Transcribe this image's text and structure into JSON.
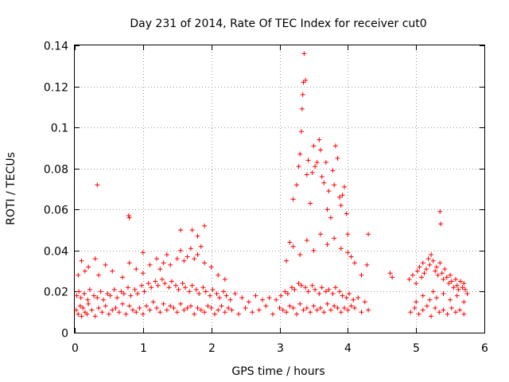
{
  "chart_data": {
    "type": "scatter",
    "title": "Day 231 of 2014, Rate Of TEC Index for receiver cut0",
    "xlabel": "GPS time / hours",
    "ylabel": "ROTI / TECUs",
    "xlim": [
      0,
      6
    ],
    "ylim": [
      0,
      0.14
    ],
    "x_ticks": [
      0,
      1,
      2,
      3,
      4,
      5,
      6
    ],
    "y_ticks": [
      0,
      0.02,
      0.04,
      0.06,
      0.08,
      0.1,
      0.12,
      0.14
    ],
    "x_tick_labels": [
      "0",
      "1",
      "2",
      "3",
      "4",
      "5",
      "6"
    ],
    "y_tick_labels": [
      "0",
      "0.02",
      "0.04",
      "0.06",
      "0.08",
      "0.1",
      "0.12",
      "0.14"
    ],
    "grid": true,
    "marker": "+",
    "color": "#ff0000",
    "series": [
      {
        "name": "ROTI",
        "x": [
          0.02,
          0.05,
          0.08,
          0.1,
          0.12,
          0.15,
          0.18,
          0.2,
          0.25,
          0.3,
          0.35,
          0.4,
          0.45,
          0.5,
          0.55,
          0.6,
          0.65,
          0.7,
          0.75,
          0.8,
          0.85,
          0.9,
          0.95,
          1.0,
          1.05,
          1.1,
          1.15,
          1.2,
          1.25,
          1.3,
          1.35,
          1.4,
          1.45,
          1.5,
          1.55,
          1.6,
          1.65,
          1.7,
          1.75,
          1.8,
          1.85,
          1.9,
          1.95,
          2.0,
          2.05,
          2.1,
          2.15,
          2.2,
          2.25,
          2.3,
          2.4,
          2.5,
          2.6,
          2.7,
          2.8,
          2.9,
          3.0,
          3.05,
          3.1,
          3.15,
          3.2,
          3.25,
          3.3,
          3.35,
          3.4,
          3.45,
          3.5,
          3.55,
          3.6,
          3.65,
          3.7,
          3.75,
          3.8,
          3.85,
          3.9,
          3.95,
          4.0,
          4.05,
          4.1,
          4.2,
          4.3,
          0.03,
          0.06,
          0.09,
          0.14,
          0.19,
          0.22,
          0.28,
          0.33,
          0.38,
          0.42,
          0.48,
          0.52,
          0.58,
          0.62,
          0.68,
          0.72,
          0.78,
          0.82,
          0.88,
          0.92,
          0.98,
          1.02,
          1.08,
          1.12,
          1.18,
          1.22,
          1.28,
          1.32,
          1.38,
          1.42,
          1.48,
          1.52,
          1.58,
          1.62,
          1.68,
          1.72,
          1.78,
          1.82,
          1.88,
          1.92,
          1.98,
          2.02,
          2.08,
          2.12,
          2.18,
          2.22,
          2.28,
          2.35,
          2.45,
          2.55,
          2.65,
          2.75,
          2.85,
          2.95,
          3.02,
          3.08,
          3.12,
          3.18,
          3.22,
          3.28,
          3.32,
          3.38,
          3.42,
          3.48,
          3.52,
          3.58,
          3.62,
          3.68,
          3.72,
          3.78,
          3.82,
          3.88,
          3.92,
          3.98,
          4.02,
          4.08,
          4.15,
          4.25,
          0.05,
          0.1,
          0.15,
          0.2,
          0.3,
          0.35,
          0.45,
          0.55,
          0.7,
          0.8,
          0.9,
          1.0,
          1.1,
          1.2,
          1.25,
          1.3,
          1.35,
          1.4,
          1.5,
          1.55,
          1.6,
          1.65,
          1.7,
          1.75,
          1.8,
          1.85,
          1.9,
          2.0,
          2.1,
          2.2,
          0.33,
          0.79,
          0.8,
          1.0,
          1.55,
          1.72,
          1.8,
          1.9,
          3.2,
          3.25,
          3.28,
          3.3,
          3.32,
          3.33,
          3.34,
          3.35,
          3.36,
          3.38,
          3.4,
          3.42,
          3.45,
          3.48,
          3.5,
          3.52,
          3.55,
          3.58,
          3.6,
          3.62,
          3.65,
          3.68,
          3.7,
          3.72,
          3.75,
          3.78,
          3.8,
          3.82,
          3.85,
          3.88,
          3.9,
          3.92,
          3.95,
          3.98,
          4.0,
          3.1,
          3.15,
          3.2,
          3.3,
          3.4,
          3.5,
          3.6,
          3.7,
          3.8,
          3.9,
          4.0,
          4.05,
          4.1,
          4.2,
          4.28,
          4.3,
          4.62,
          4.65,
          4.9,
          4.95,
          5.0,
          5.02,
          5.05,
          5.08,
          5.1,
          5.12,
          5.15,
          5.18,
          5.2,
          5.22,
          5.25,
          5.28,
          5.3,
          5.32,
          5.35,
          5.38,
          5.4,
          5.42,
          5.45,
          5.48,
          5.5,
          5.52,
          5.55,
          5.58,
          5.6,
          5.62,
          5.65,
          5.68,
          5.7,
          5.72,
          5.75,
          4.92,
          4.98,
          5.04,
          5.1,
          5.16,
          5.22,
          5.28,
          5.34,
          5.4,
          5.46,
          5.52,
          5.58,
          5.64,
          5.7,
          5.0,
          5.1,
          5.2,
          5.25,
          5.3,
          5.35,
          5.36,
          5.4,
          5.5,
          5.6,
          5.7
        ],
        "y": [
          0.011,
          0.009,
          0.013,
          0.008,
          0.012,
          0.01,
          0.009,
          0.014,
          0.011,
          0.008,
          0.012,
          0.01,
          0.013,
          0.009,
          0.011,
          0.012,
          0.01,
          0.014,
          0.009,
          0.013,
          0.011,
          0.01,
          0.012,
          0.009,
          0.013,
          0.011,
          0.015,
          0.012,
          0.01,
          0.014,
          0.011,
          0.013,
          0.012,
          0.01,
          0.014,
          0.011,
          0.012,
          0.013,
          0.009,
          0.012,
          0.011,
          0.01,
          0.013,
          0.012,
          0.009,
          0.011,
          0.013,
          0.01,
          0.012,
          0.011,
          0.009,
          0.012,
          0.01,
          0.011,
          0.013,
          0.009,
          0.012,
          0.011,
          0.01,
          0.013,
          0.012,
          0.009,
          0.014,
          0.011,
          0.012,
          0.01,
          0.013,
          0.011,
          0.012,
          0.01,
          0.014,
          0.011,
          0.013,
          0.012,
          0.01,
          0.012,
          0.011,
          0.013,
          0.012,
          0.01,
          0.011,
          0.018,
          0.02,
          0.017,
          0.019,
          0.016,
          0.021,
          0.018,
          0.017,
          0.02,
          0.016,
          0.019,
          0.018,
          0.021,
          0.017,
          0.02,
          0.019,
          0.022,
          0.018,
          0.021,
          0.019,
          0.023,
          0.02,
          0.024,
          0.022,
          0.025,
          0.023,
          0.026,
          0.024,
          0.022,
          0.025,
          0.023,
          0.021,
          0.024,
          0.022,
          0.02,
          0.023,
          0.021,
          0.019,
          0.022,
          0.02,
          0.018,
          0.021,
          0.019,
          0.017,
          0.02,
          0.018,
          0.016,
          0.019,
          0.017,
          0.015,
          0.018,
          0.016,
          0.017,
          0.016,
          0.018,
          0.02,
          0.019,
          0.022,
          0.021,
          0.024,
          0.023,
          0.022,
          0.02,
          0.023,
          0.021,
          0.019,
          0.022,
          0.02,
          0.021,
          0.019,
          0.022,
          0.02,
          0.018,
          0.017,
          0.019,
          0.016,
          0.017,
          0.015,
          0.028,
          0.035,
          0.03,
          0.032,
          0.036,
          0.028,
          0.033,
          0.03,
          0.027,
          0.034,
          0.031,
          0.029,
          0.033,
          0.036,
          0.031,
          0.034,
          0.038,
          0.033,
          0.036,
          0.04,
          0.035,
          0.037,
          0.041,
          0.036,
          0.038,
          0.042,
          0.034,
          0.032,
          0.028,
          0.026,
          0.072,
          0.057,
          0.056,
          0.039,
          0.05,
          0.05,
          0.047,
          0.052,
          0.065,
          0.072,
          0.081,
          0.087,
          0.098,
          0.109,
          0.116,
          0.122,
          0.136,
          0.123,
          0.077,
          0.084,
          0.063,
          0.078,
          0.091,
          0.081,
          0.083,
          0.094,
          0.089,
          0.076,
          0.073,
          0.083,
          0.06,
          0.069,
          0.056,
          0.079,
          0.072,
          0.091,
          0.085,
          0.066,
          0.062,
          0.067,
          0.071,
          0.058,
          0.048,
          0.035,
          0.044,
          0.042,
          0.038,
          0.045,
          0.04,
          0.048,
          0.043,
          0.046,
          0.041,
          0.039,
          0.037,
          0.034,
          0.028,
          0.033,
          0.048,
          0.029,
          0.027,
          0.026,
          0.028,
          0.024,
          0.03,
          0.032,
          0.027,
          0.034,
          0.029,
          0.031,
          0.036,
          0.033,
          0.038,
          0.035,
          0.03,
          0.032,
          0.028,
          0.034,
          0.029,
          0.026,
          0.031,
          0.027,
          0.024,
          0.028,
          0.025,
          0.022,
          0.026,
          0.023,
          0.021,
          0.025,
          0.022,
          0.024,
          0.021,
          0.019,
          0.01,
          0.012,
          0.009,
          0.011,
          0.013,
          0.008,
          0.012,
          0.01,
          0.011,
          0.009,
          0.012,
          0.01,
          0.011,
          0.009,
          0.015,
          0.018,
          0.016,
          0.02,
          0.017,
          0.059,
          0.053,
          0.019,
          0.016,
          0.018,
          0.015
        ]
      }
    ]
  }
}
